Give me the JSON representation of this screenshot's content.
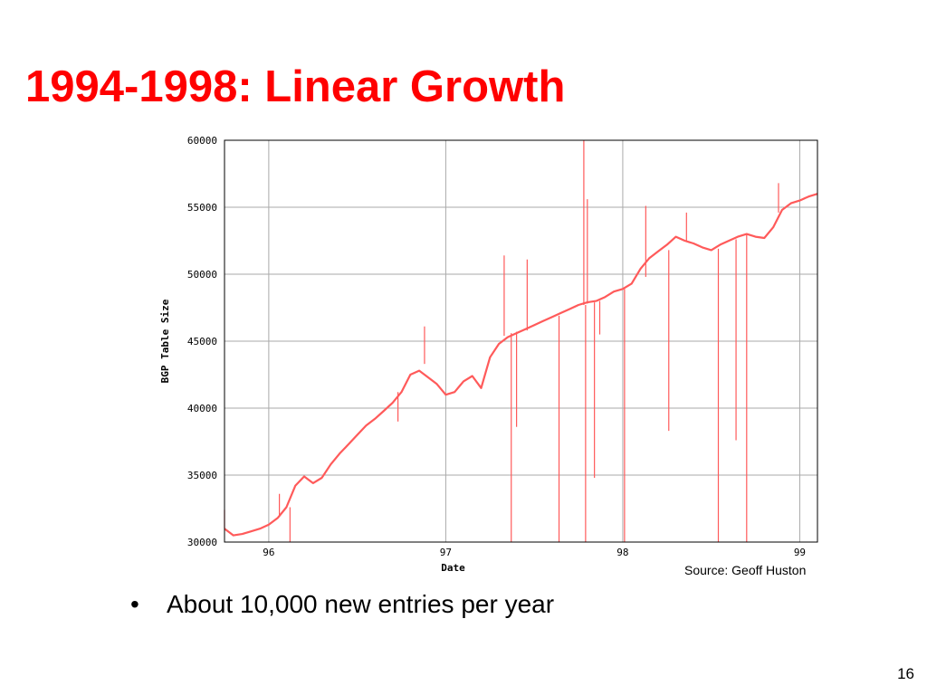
{
  "slide": {
    "title": "1994-1998: Linear Growth",
    "source": "Source: Geoff Huston",
    "bullet_marker": "•",
    "bullets": [
      "About 10,000 new entries per year"
    ],
    "page_number": "16"
  },
  "colors": {
    "title": "#ff0000",
    "series": "#ff5a5a",
    "grid": "#aaaaaa",
    "axis_text": "#000000"
  },
  "chart_data": {
    "type": "line",
    "title": "",
    "xlabel": "Date",
    "ylabel": "BGP Table Size",
    "xlim": [
      95.75,
      99.1
    ],
    "ylim": [
      30000,
      60000
    ],
    "x_ticks": [
      96,
      97,
      98,
      99
    ],
    "x_tick_labels": [
      "96",
      "97",
      "98",
      "99"
    ],
    "y_ticks": [
      30000,
      35000,
      40000,
      45000,
      50000,
      55000,
      60000
    ],
    "y_tick_labels": [
      "30000",
      "35000",
      "40000",
      "45000",
      "50000",
      "55000",
      "60000"
    ],
    "grid": true,
    "legend": "none",
    "series": [
      {
        "x": [
          95.75,
          95.8,
          95.85,
          95.9,
          95.95,
          96.0,
          96.05,
          96.1,
          96.15,
          96.2,
          96.25,
          96.3,
          96.35,
          96.4,
          96.45,
          96.5,
          96.55,
          96.6,
          96.65,
          96.7,
          96.75,
          96.8,
          96.85,
          96.9,
          96.95,
          97.0,
          97.05,
          97.1,
          97.15,
          97.2,
          97.25,
          97.3,
          97.35,
          97.4,
          97.45,
          97.5,
          97.55,
          97.6,
          97.65,
          97.7,
          97.75,
          97.8,
          97.85,
          97.9,
          97.95,
          98.0,
          98.05,
          98.1,
          98.15,
          98.2,
          98.25,
          98.3,
          98.35,
          98.4,
          98.45,
          98.5,
          98.55,
          98.6,
          98.65,
          98.7,
          98.75,
          98.8,
          98.85,
          98.9,
          98.95,
          99.0,
          99.05,
          99.1
        ],
        "values": [
          31000,
          30500,
          30600,
          30800,
          31000,
          31300,
          31800,
          32600,
          34200,
          34900,
          34400,
          34800,
          35800,
          36600,
          37300,
          38000,
          38700,
          39200,
          39800,
          40400,
          41200,
          42500,
          42800,
          42300,
          41800,
          41000,
          41200,
          42000,
          42400,
          41500,
          43800,
          44800,
          45300,
          45600,
          45900,
          46200,
          46500,
          46800,
          47100,
          47400,
          47700,
          47900,
          48000,
          48300,
          48700,
          48900,
          49300,
          50400,
          51200,
          51700,
          52200,
          52800,
          52500,
          52300,
          52000,
          51800,
          52200,
          52500,
          52800,
          53000,
          52800,
          52700,
          53500,
          54800,
          55300,
          55500,
          55800,
          56000
        ]
      }
    ],
    "spikes": [
      {
        "x": 95.75,
        "from": 31000,
        "to": 32400
      },
      {
        "x": 96.06,
        "from": 31900,
        "to": 33600
      },
      {
        "x": 96.12,
        "from": 32600,
        "to": 30000
      },
      {
        "x": 96.73,
        "from": 41200,
        "to": 39000
      },
      {
        "x": 96.88,
        "from": 43300,
        "to": 46100
      },
      {
        "x": 97.33,
        "from": 45400,
        "to": 51400
      },
      {
        "x": 97.37,
        "from": 45600,
        "to": 30000
      },
      {
        "x": 97.4,
        "from": 45700,
        "to": 38600
      },
      {
        "x": 97.46,
        "from": 45800,
        "to": 51100
      },
      {
        "x": 97.64,
        "from": 46900,
        "to": 30000
      },
      {
        "x": 97.78,
        "from": 47700,
        "to": 60000
      },
      {
        "x": 97.79,
        "from": 47700,
        "to": 30000
      },
      {
        "x": 97.8,
        "from": 47800,
        "to": 55600
      },
      {
        "x": 97.84,
        "from": 47900,
        "to": 34800
      },
      {
        "x": 97.87,
        "from": 48000,
        "to": 45500
      },
      {
        "x": 98.01,
        "from": 48900,
        "to": 30000
      },
      {
        "x": 98.13,
        "from": 49800,
        "to": 55100
      },
      {
        "x": 98.26,
        "from": 51800,
        "to": 38300
      },
      {
        "x": 98.36,
        "from": 52500,
        "to": 54600
      },
      {
        "x": 98.54,
        "from": 51900,
        "to": 30000
      },
      {
        "x": 98.64,
        "from": 52600,
        "to": 37600
      },
      {
        "x": 98.7,
        "from": 53000,
        "to": 30000
      },
      {
        "x": 98.88,
        "from": 54600,
        "to": 56800
      }
    ]
  }
}
